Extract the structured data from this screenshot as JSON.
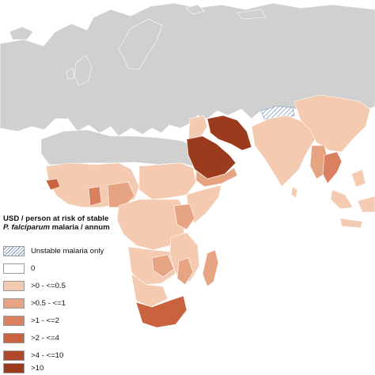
{
  "colors": {
    "ocean": "#ffffff",
    "no_data_land": "#d0d0d0",
    "border": "#ffffff",
    "hatch": "#6d8fbe",
    "class_0": "#ffffff",
    "class_1": "#f4cbb0",
    "class_2": "#e7a483",
    "class_3": "#d98060",
    "class_4": "#c9623f",
    "class_5": "#b1472a",
    "class_6": "#9c3a1d"
  },
  "legend": {
    "title_line1": "USD / person at risk of stable",
    "title_species": "P. falciparum",
    "title_line2_rest": " malaria / annum",
    "items": [
      {
        "label": "Unstable malaria only",
        "style": "hatch"
      },
      {
        "label": "0",
        "color": "#ffffff"
      },
      {
        "label": ">0 - <=0.5",
        "color": "#f4cbb0"
      },
      {
        "label": ">0.5 - <=1",
        "color": "#e7a483"
      },
      {
        "label": ">1 - <=2",
        "color": "#d98060"
      },
      {
        "label": ">2 - <=4",
        "color": "#c9623f"
      },
      {
        "label": ">4 - <=10",
        "color": "#b1472a"
      },
      {
        "label": ">10",
        "color": "#9c3a1d"
      }
    ]
  }
}
